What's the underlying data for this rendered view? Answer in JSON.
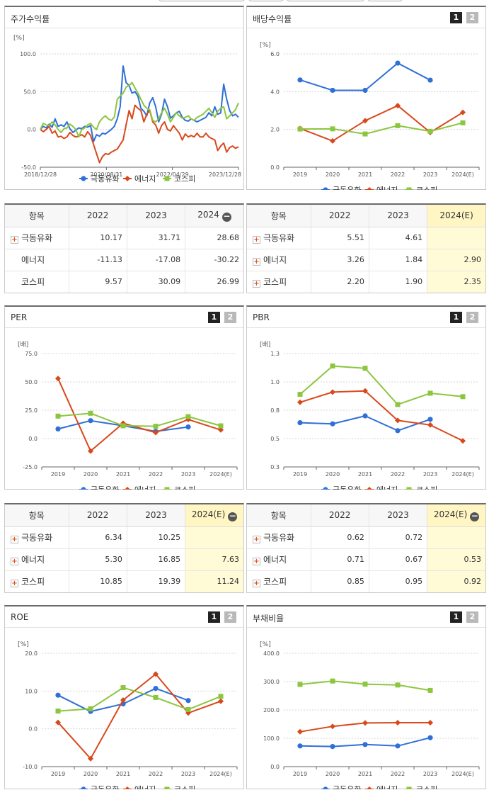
{
  "colors": {
    "series1": "#2f6fd6",
    "series2": "#d9481b",
    "series3": "#8cc63f"
  },
  "legend": [
    "극동유화",
    "에너지",
    "코스피"
  ],
  "pager": {
    "p1": "1",
    "p2": "2"
  },
  "panels": {
    "stock": {
      "title": "주가수익률",
      "unit": "[%]",
      "yticks": [
        "100.0",
        "50.0",
        "0.0",
        "-50.0"
      ],
      "xticks": [
        "2018/12/28",
        "2020/08/31",
        "2022/04/29",
        "2023/12/28"
      ]
    },
    "dividend": {
      "title": "배당수익률",
      "unit": "[%]",
      "yticks": [
        "6.0",
        "4.0",
        "2.0",
        "0.0"
      ],
      "xticks": [
        "2019",
        "2020",
        "2021",
        "2022",
        "2023",
        "2024(E)"
      ]
    },
    "per": {
      "title": "PER",
      "unit": "[배]",
      "yticks": [
        "75.0",
        "50.0",
        "25.0",
        "0.0",
        "-25.0"
      ],
      "xticks": [
        "2019",
        "2020",
        "2021",
        "2022",
        "2023",
        "2024(E)"
      ]
    },
    "pbr": {
      "title": "PBR",
      "unit": "[배]",
      "yticks": [
        "1.3",
        "1.0",
        "0.8",
        "0.5",
        "0.3"
      ],
      "xticks": [
        "2019",
        "2020",
        "2021",
        "2022",
        "2023",
        "2024(E)"
      ]
    },
    "roe": {
      "title": "ROE",
      "unit": "[%]",
      "yticks": [
        "20.0",
        "10.0",
        "0.0",
        "-10.0"
      ],
      "xticks": [
        "2019",
        "2020",
        "2021",
        "2022",
        "2023",
        "2024(E)"
      ]
    },
    "debt": {
      "title": "부채비율",
      "unit": "[%]",
      "yticks": [
        "400.0",
        "300.0",
        "200.0",
        "100.0",
        "0.0"
      ],
      "xticks": [
        "2019",
        "2020",
        "2021",
        "2022",
        "2023",
        "2024(E)"
      ]
    }
  },
  "tables": {
    "stock": {
      "headers": [
        "항목",
        "2022",
        "2023",
        "2024"
      ],
      "rows": [
        {
          "name": "극동유화",
          "icon": true,
          "v": [
            "10.17",
            "31.71",
            "28.68"
          ]
        },
        {
          "name": "에너지",
          "icon": false,
          "v": [
            "-11.13",
            "-17.08",
            "-30.22"
          ]
        },
        {
          "name": "코스피",
          "icon": false,
          "v": [
            "9.57",
            "30.09",
            "26.99"
          ]
        }
      ]
    },
    "dividend": {
      "headers": [
        "항목",
        "2022",
        "2023",
        "2024(E)"
      ],
      "rows": [
        {
          "name": "극동유화",
          "icon": true,
          "v": [
            "5.51",
            "4.61",
            ""
          ]
        },
        {
          "name": "에너지",
          "icon": true,
          "v": [
            "3.26",
            "1.84",
            "2.90"
          ]
        },
        {
          "name": "코스피",
          "icon": true,
          "v": [
            "2.20",
            "1.90",
            "2.35"
          ]
        }
      ]
    },
    "per": {
      "headers": [
        "항목",
        "2022",
        "2023",
        "2024(E)"
      ],
      "rows": [
        {
          "name": "극동유화",
          "icon": true,
          "v": [
            "6.34",
            "10.25",
            ""
          ]
        },
        {
          "name": "에너지",
          "icon": true,
          "v": [
            "5.30",
            "16.85",
            "7.63"
          ]
        },
        {
          "name": "코스피",
          "icon": true,
          "v": [
            "10.85",
            "19.39",
            "11.24"
          ]
        }
      ]
    },
    "pbr": {
      "headers": [
        "항목",
        "2022",
        "2023",
        "2024(E)"
      ],
      "rows": [
        {
          "name": "극동유화",
          "icon": true,
          "v": [
            "0.62",
            "0.72",
            ""
          ]
        },
        {
          "name": "에너지",
          "icon": true,
          "v": [
            "0.71",
            "0.67",
            "0.53"
          ]
        },
        {
          "name": "코스피",
          "icon": true,
          "v": [
            "0.85",
            "0.95",
            "0.92"
          ]
        }
      ]
    }
  },
  "chart_data": [
    {
      "id": "stock",
      "type": "line",
      "title": "주가수익률",
      "ylim": [
        -50,
        100
      ],
      "x_ticks": [
        "2018/12/28",
        "2020/08/31",
        "2022/04/29",
        "2023/12/28"
      ],
      "series": [
        {
          "name": "극동유화",
          "values": [
            0,
            4,
            2,
            7,
            3,
            14,
            4,
            6,
            4,
            10,
            1,
            -4,
            -1,
            2,
            1,
            4,
            3,
            5,
            -16,
            -7,
            -9,
            -5,
            -6,
            -3,
            0,
            4,
            14,
            30,
            84,
            62,
            58,
            48,
            50,
            44,
            28,
            24,
            18,
            35,
            42,
            30,
            10,
            20,
            40,
            30,
            15,
            18,
            22,
            24,
            16,
            12,
            11,
            14,
            12,
            10,
            12,
            14,
            16,
            22,
            18,
            30,
            20,
            22,
            60,
            40,
            25,
            18,
            20,
            16
          ]
        },
        {
          "name": "에너지",
          "values": [
            0,
            -3,
            0,
            4,
            -5,
            -2,
            -10,
            -9,
            -12,
            -10,
            -4,
            -8,
            -10,
            -9,
            -7,
            -10,
            -3,
            -8,
            -20,
            -32,
            -44,
            -36,
            -32,
            -33,
            -30,
            -28,
            -26,
            -20,
            -14,
            6,
            25,
            14,
            32,
            28,
            25,
            10,
            20,
            25,
            10,
            6,
            -5,
            5,
            10,
            0,
            -2,
            5,
            0,
            -5,
            -14,
            -6,
            -10,
            -8,
            -10,
            -5,
            -10,
            -10,
            -5,
            -10,
            -12,
            -14,
            -28,
            -22,
            -18,
            -30,
            -24,
            -22,
            -25,
            -23
          ]
        },
        {
          "name": "코스피",
          "values": [
            0,
            8,
            6,
            5,
            10,
            6,
            0,
            -4,
            1,
            2,
            7,
            4,
            0,
            -10,
            0,
            2,
            6,
            8,
            3,
            0,
            10,
            15,
            18,
            14,
            12,
            16,
            40,
            44,
            48,
            56,
            58,
            62,
            55,
            48,
            40,
            32,
            28,
            26,
            12,
            10,
            14,
            22,
            28,
            20,
            10,
            16,
            22,
            18,
            15,
            16,
            18,
            14,
            12,
            16,
            18,
            20,
            24,
            28,
            22,
            16,
            24,
            28,
            30,
            14,
            18,
            22,
            26,
            35
          ]
        }
      ]
    },
    {
      "id": "dividend",
      "type": "line",
      "title": "배당수익률",
      "ylim": [
        0,
        6
      ],
      "categories": [
        "2019",
        "2020",
        "2021",
        "2022",
        "2023",
        "2024(E)"
      ],
      "series": [
        {
          "name": "극동유화",
          "values": [
            4.62,
            4.07,
            4.07,
            5.51,
            4.61,
            null
          ]
        },
        {
          "name": "에너지",
          "values": [
            2.05,
            1.39,
            2.46,
            3.26,
            1.84,
            2.9
          ]
        },
        {
          "name": "코스피",
          "values": [
            2.02,
            2.03,
            1.76,
            2.2,
            1.9,
            2.35
          ]
        }
      ]
    },
    {
      "id": "per",
      "type": "line",
      "title": "PER",
      "ylim": [
        -25,
        75
      ],
      "categories": [
        "2019",
        "2020",
        "2021",
        "2022",
        "2023",
        "2024(E)"
      ],
      "series": [
        {
          "name": "극동유화",
          "values": [
            8.5,
            15.8,
            11.3,
            6.34,
            10.25,
            null
          ]
        },
        {
          "name": "에너지",
          "values": [
            53.0,
            -11.0,
            13.5,
            5.3,
            16.85,
            7.63
          ]
        },
        {
          "name": "코스피",
          "values": [
            19.8,
            22.3,
            11.3,
            10.85,
            19.39,
            11.24
          ]
        }
      ]
    },
    {
      "id": "pbr",
      "type": "line",
      "title": "PBR",
      "ylim": [
        0.3,
        1.3
      ],
      "categories": [
        "2019",
        "2020",
        "2021",
        "2022",
        "2023",
        "2024(E)"
      ],
      "series": [
        {
          "name": "극동유화",
          "values": [
            0.69,
            0.68,
            0.75,
            0.62,
            0.72,
            null
          ]
        },
        {
          "name": "에너지",
          "values": [
            0.87,
            0.96,
            0.97,
            0.71,
            0.67,
            0.53
          ]
        },
        {
          "name": "코스피",
          "values": [
            0.94,
            1.19,
            1.17,
            0.85,
            0.95,
            0.92
          ]
        }
      ]
    },
    {
      "id": "roe",
      "type": "line",
      "title": "ROE",
      "ylim": [
        -10,
        20
      ],
      "categories": [
        "2019",
        "2020",
        "2021",
        "2022",
        "2023",
        "2024(E)"
      ],
      "series": [
        {
          "name": "극동유화",
          "values": [
            8.9,
            4.6,
            6.6,
            10.7,
            7.5,
            null
          ]
        },
        {
          "name": "에너지",
          "values": [
            1.7,
            -7.9,
            7.6,
            14.5,
            4.2,
            7.3
          ]
        },
        {
          "name": "코스피",
          "values": [
            4.7,
            5.3,
            10.9,
            8.3,
            5.1,
            8.6
          ]
        }
      ]
    },
    {
      "id": "debt",
      "type": "line",
      "title": "부채비율",
      "ylim": [
        0,
        400
      ],
      "categories": [
        "2019",
        "2020",
        "2021",
        "2022",
        "2023",
        "2024(E)"
      ],
      "series": [
        {
          "name": "극동유화",
          "values": [
            73,
            71,
            78,
            73,
            102,
            null
          ]
        },
        {
          "name": "에너지",
          "values": [
            123,
            142,
            154,
            155,
            155,
            null
          ]
        },
        {
          "name": "코스피",
          "values": [
            290,
            302,
            291,
            288,
            269,
            null
          ]
        }
      ]
    }
  ]
}
